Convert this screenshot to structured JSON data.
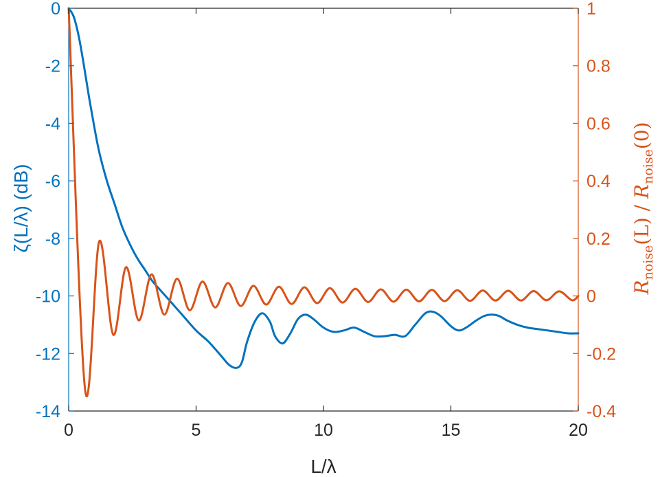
{
  "chart_data": {
    "type": "line",
    "xlabel": "L/λ",
    "ylabel_left": "ζ(L/λ) (dB)",
    "ylabel_right": "R_noise(L) / R_noise(0)",
    "ylabel_right_parts": {
      "r": "R",
      "sub1": "noise",
      "mid": "(L) / ",
      "r2": "R",
      "sub2": "noise",
      "end": "(0)"
    },
    "xlim": [
      0,
      20
    ],
    "ylim_left": [
      -14,
      0
    ],
    "ylim_right": [
      -0.4,
      1
    ],
    "x_ticks": [
      0,
      5,
      10,
      15,
      20
    ],
    "x_tick_labels": [
      "0",
      "5",
      "10",
      "15",
      "20"
    ],
    "y_left_ticks": [
      0,
      -2,
      -4,
      -6,
      -8,
      -10,
      -12,
      -14
    ],
    "y_left_tick_labels": [
      "0",
      "-2",
      "-4",
      "-6",
      "-8",
      "-10",
      "-12",
      "-14"
    ],
    "y_right_ticks": [
      1,
      0.8,
      0.6,
      0.4,
      0.2,
      0,
      -0.2,
      -0.4
    ],
    "y_right_tick_labels": [
      "1",
      "0.8",
      "0.6",
      "0.4",
      "0.2",
      "0",
      "-0.2",
      "-0.4"
    ],
    "grid": false,
    "colors": {
      "left_axis": "#0072BD",
      "right_axis": "#D95319"
    },
    "series": [
      {
        "axis": "left",
        "color": "#0072BD",
        "x": [
          0,
          0.2,
          0.4,
          0.6,
          0.8,
          1.0,
          1.2,
          1.5,
          1.8,
          2.1,
          2.4,
          2.7,
          3.0,
          3.3,
          3.6,
          4.0,
          4.5,
          5.0,
          5.5,
          6.0,
          6.3,
          6.6,
          6.8,
          7.0,
          7.3,
          7.6,
          7.9,
          8.1,
          8.4,
          8.7,
          9.0,
          9.3,
          9.6,
          10.0,
          10.4,
          10.8,
          11.2,
          11.6,
          12.0,
          12.4,
          12.8,
          13.2,
          13.6,
          14.0,
          14.3,
          14.6,
          15.0,
          15.3,
          15.6,
          16.0,
          16.3,
          16.6,
          16.9,
          17.2,
          17.6,
          18.0,
          18.4,
          18.8,
          19.2,
          19.6,
          20.0
        ],
        "y": [
          0,
          -0.3,
          -1.0,
          -2.0,
          -3.1,
          -4.1,
          -5.0,
          -6.0,
          -6.8,
          -7.6,
          -8.2,
          -8.7,
          -9.1,
          -9.5,
          -9.8,
          -10.2,
          -10.7,
          -11.2,
          -11.6,
          -12.1,
          -12.4,
          -12.5,
          -12.3,
          -11.6,
          -10.9,
          -10.6,
          -10.9,
          -11.4,
          -11.65,
          -11.3,
          -10.8,
          -10.65,
          -10.8,
          -11.1,
          -11.25,
          -11.2,
          -11.1,
          -11.25,
          -11.4,
          -11.4,
          -11.35,
          -11.4,
          -11.0,
          -10.6,
          -10.55,
          -10.7,
          -11.05,
          -11.2,
          -11.1,
          -10.85,
          -10.7,
          -10.65,
          -10.7,
          -10.85,
          -11.0,
          -11.1,
          -11.15,
          -11.2,
          -11.25,
          -11.3,
          -11.3
        ]
      },
      {
        "axis": "right",
        "color": "#D95319",
        "model": "damped_oscillation",
        "x": [
          0,
          0.65,
          1.2,
          1.75,
          2.25,
          2.75,
          3.25,
          3.75,
          4.25,
          4.75,
          5.25,
          5.75,
          6.25,
          6.75,
          7.25,
          7.75,
          8.25,
          8.75,
          9.25,
          9.75,
          10.25,
          10.75,
          11.25,
          11.75,
          12.25,
          12.75,
          13.25,
          13.75,
          14.25,
          14.75,
          15.25,
          15.75,
          16.25,
          16.75,
          17.25,
          17.75,
          18.25,
          18.75,
          19.25,
          19.75,
          20.0
        ],
        "y": [
          1.0,
          -0.33,
          0.19,
          -0.135,
          0.1,
          -0.085,
          0.075,
          -0.065,
          0.06,
          -0.05,
          0.05,
          -0.04,
          0.045,
          -0.035,
          0.035,
          -0.03,
          0.032,
          -0.028,
          0.03,
          -0.025,
          0.027,
          -0.023,
          0.025,
          -0.021,
          0.023,
          -0.02,
          0.022,
          -0.019,
          0.021,
          -0.018,
          0.02,
          -0.017,
          0.019,
          -0.016,
          0.018,
          -0.016,
          0.017,
          -0.015,
          0.016,
          -0.015,
          0.0
        ]
      }
    ]
  }
}
